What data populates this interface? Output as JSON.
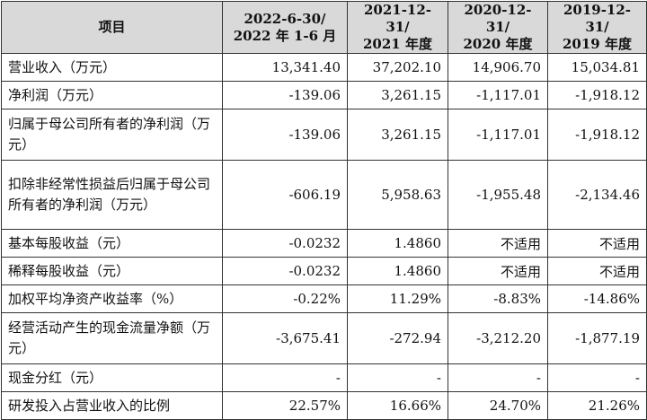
{
  "table": {
    "headers": [
      {
        "line1": "项目",
        "line2": ""
      },
      {
        "line1": "2022-6-30/",
        "line2": "2022 年 1-6 月"
      },
      {
        "line1": "2021-12-31/",
        "line2": "2021 年度"
      },
      {
        "line1": "2020-12-31/",
        "line2": "2020 年度"
      },
      {
        "line1": "2019-12-31/",
        "line2": "2019 年度"
      }
    ],
    "rows": [
      {
        "item": "营业收入（万元）",
        "values": [
          "13,341.40",
          "37,202.10",
          "14,906.70",
          "15,034.81"
        ]
      },
      {
        "item": "净利润（万元）",
        "values": [
          "-139.06",
          "3,261.15",
          "-1,117.01",
          "-1,918.12"
        ]
      },
      {
        "item": "归属于母公司所有者的净利润（万元）",
        "values": [
          "-139.06",
          "3,261.15",
          "-1,117.01",
          "-1,918.12"
        ]
      },
      {
        "item": "扣除非经常性损益后归属于母公司所有者的净利润（万元）",
        "values": [
          "-606.19",
          "5,958.63",
          "-1,955.48",
          "-2,134.46"
        ]
      },
      {
        "item": "基本每股收益（元）",
        "values": [
          "-0.0232",
          "1.4860",
          "不适用",
          "不适用"
        ]
      },
      {
        "item": "稀释每股收益（元）",
        "values": [
          "-0.0232",
          "1.4860",
          "不适用",
          "不适用"
        ]
      },
      {
        "item": "加权平均净资产收益率（%）",
        "values": [
          "-0.22%",
          "11.29%",
          "-8.83%",
          "-14.86%"
        ]
      },
      {
        "item": "经营活动产生的现金流量净额（万元）",
        "values": [
          "-3,675.41",
          "-272.94",
          "-3,212.20",
          "-1,877.19"
        ]
      },
      {
        "item": "现金分红（元）",
        "values": [
          "-",
          "-",
          "-",
          "-"
        ]
      },
      {
        "item": "研发投入占营业收入的比例",
        "values": [
          "22.57%",
          "16.66%",
          "24.70%",
          "21.26%"
        ]
      }
    ]
  }
}
